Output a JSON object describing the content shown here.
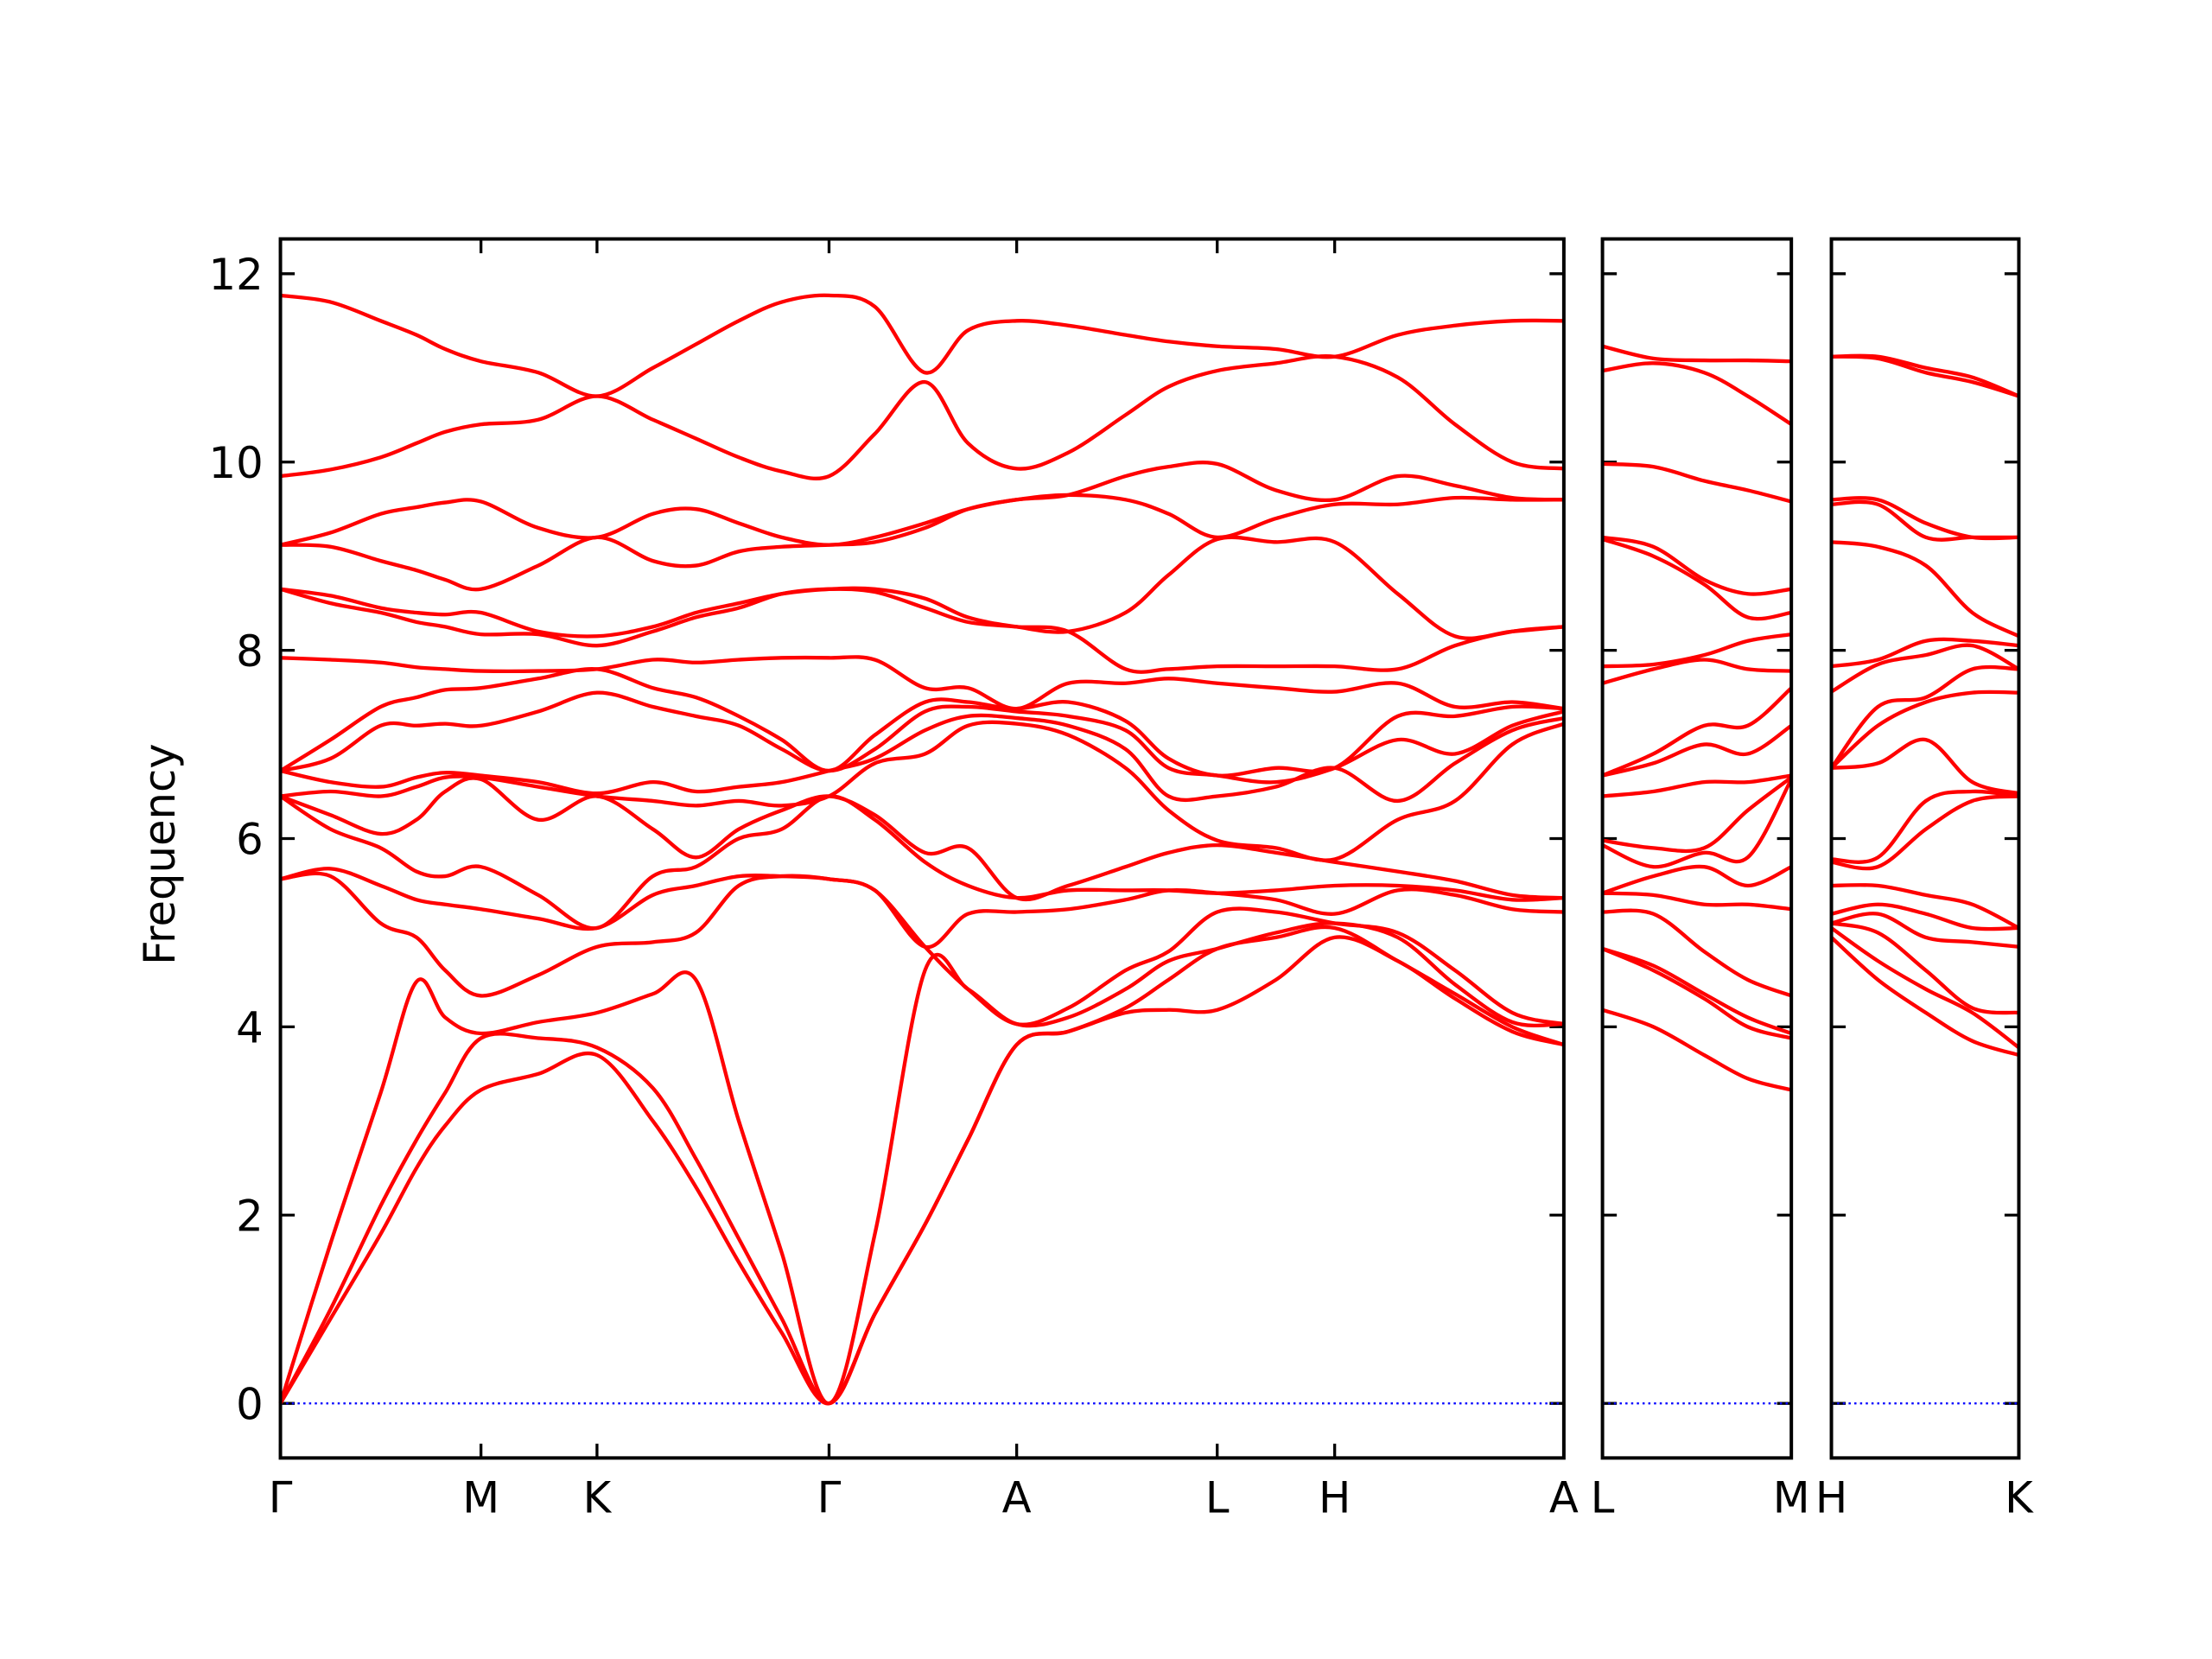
{
  "chart_data": [
    {
      "type": "line",
      "ylabel": "Frequency",
      "color": "#ff0000",
      "ytick_labels": true,
      "hline": {
        "value": 0,
        "color": "#0000ff"
      },
      "x": [
        0,
        0.35,
        0.7,
        0.95,
        1.15,
        1.4,
        1.8,
        2.21,
        2.6,
        2.9,
        3.2,
        3.5,
        3.83,
        4.15,
        4.5,
        4.8,
        5.14,
        5.5,
        5.9,
        6.2,
        6.54,
        6.95,
        7.36,
        7.8,
        8.2,
        8.6,
        8.96
      ],
      "xlim": [
        0,
        8.96
      ],
      "xticks": [
        {
          "value": 0,
          "label": "Γ"
        },
        {
          "value": 1.4,
          "label": "M"
        },
        {
          "value": 2.21,
          "label": "K"
        },
        {
          "value": 3.83,
          "label": "Γ"
        },
        {
          "value": 5.14,
          "label": "A"
        },
        {
          "value": 6.54,
          "label": "L"
        },
        {
          "value": 7.36,
          "label": "H"
        },
        {
          "value": 8.96,
          "label": "A"
        }
      ],
      "ylim": [
        -0.58,
        12.37
      ],
      "yticks": [
        0,
        2,
        4,
        6,
        8,
        10,
        12
      ],
      "series": [
        {
          "values": [
            0,
            0.9,
            1.8,
            2.5,
            2.95,
            3.33,
            3.5,
            3.7,
            3.0,
            2.3,
            1.5,
            0.75,
            0,
            0.95,
            1.9,
            2.8,
            3.81,
            3.95,
            4.15,
            4.18,
            4.18,
            4.5,
            4.95,
            4.7,
            4.3,
            3.95,
            3.81
          ]
        },
        {
          "values": [
            0,
            1.0,
            2.1,
            2.8,
            3.3,
            3.88,
            3.88,
            3.78,
            3.35,
            2.6,
            1.75,
            0.9,
            0,
            0.95,
            1.9,
            2.8,
            3.81,
            3.95,
            4.2,
            4.5,
            4.83,
            4.95,
            5.05,
            4.7,
            4.35,
            4.0,
            3.81
          ]
        },
        {
          "values": [
            0,
            1.7,
            3.3,
            4.48,
            4.1,
            3.93,
            4.05,
            4.15,
            4.35,
            4.5,
            3.0,
            1.6,
            0,
            1.8,
            4.6,
            4.4,
            4.03,
            4.1,
            4.4,
            4.7,
            4.83,
            5.0,
            5.1,
            4.95,
            4.45,
            4.05,
            4.03
          ]
        },
        {
          "values": [
            5.57,
            5.6,
            5.1,
            4.95,
            4.6,
            4.33,
            4.55,
            4.85,
            4.9,
            5.0,
            5.5,
            5.6,
            5.57,
            5.45,
            4.85,
            4.4,
            4.03,
            4.2,
            4.6,
            4.8,
            5.22,
            5.22,
            5.1,
            5.0,
            4.6,
            4.15,
            4.03
          ]
        },
        {
          "values": [
            5.57,
            5.68,
            5.5,
            5.35,
            5.3,
            5.25,
            5.15,
            5.05,
            5.4,
            5.5,
            5.6,
            5.6,
            5.57,
            5.45,
            4.85,
            5.2,
            5.22,
            5.25,
            5.35,
            5.45,
            5.42,
            5.35,
            5.2,
            5.45,
            5.4,
            5.25,
            5.22
          ]
        },
        {
          "values": [
            6.45,
            6.1,
            5.9,
            5.65,
            5.6,
            5.7,
            5.4,
            5.05,
            5.6,
            5.7,
            6.0,
            6.1,
            6.45,
            6.2,
            5.75,
            5.5,
            5.37,
            5.45,
            5.45,
            5.45,
            5.42,
            5.45,
            5.5,
            5.5,
            5.45,
            5.35,
            5.37
          ]
        },
        {
          "values": [
            6.45,
            6.25,
            6.05,
            6.2,
            6.5,
            6.63,
            6.2,
            6.45,
            6.1,
            5.8,
            6.1,
            6.3,
            6.45,
            6.25,
            5.85,
            5.9,
            5.37,
            5.5,
            5.7,
            5.85,
            5.93,
            5.85,
            5.75,
            5.65,
            5.55,
            5.4,
            5.37
          ]
        },
        {
          "values": [
            6.45,
            6.5,
            6.45,
            6.55,
            6.65,
            6.65,
            6.55,
            6.45,
            6.4,
            6.35,
            6.4,
            6.35,
            6.45,
            6.8,
            6.9,
            7.2,
            7.22,
            7.1,
            6.75,
            6.3,
            5.98,
            5.9,
            5.78,
            6.2,
            6.4,
            7.0,
            7.22
          ]
        },
        {
          "values": [
            6.72,
            6.6,
            6.55,
            6.65,
            6.7,
            6.67,
            6.6,
            6.48,
            6.6,
            6.5,
            6.55,
            6.6,
            6.72,
            6.85,
            7.15,
            7.3,
            7.28,
            7.2,
            6.95,
            6.45,
            6.45,
            6.55,
            6.75,
            6.4,
            6.8,
            7.15,
            7.28
          ]
        },
        {
          "values": [
            6.72,
            6.85,
            7.2,
            7.2,
            7.22,
            7.2,
            7.35,
            7.55,
            7.4,
            7.3,
            7.2,
            6.95,
            6.72,
            6.95,
            7.35,
            7.4,
            7.35,
            7.3,
            7.15,
            6.75,
            6.67,
            6.6,
            6.75,
            7.05,
            6.9,
            7.2,
            7.35
          ]
        },
        {
          "values": [
            6.72,
            7.05,
            7.4,
            7.5,
            7.58,
            7.6,
            7.7,
            7.8,
            7.6,
            7.5,
            7.3,
            7.05,
            6.72,
            7.1,
            7.45,
            7.45,
            7.38,
            7.45,
            7.25,
            6.85,
            6.67,
            6.75,
            6.75,
            7.3,
            7.3,
            7.4,
            7.38
          ]
        },
        {
          "values": [
            7.92,
            7.9,
            7.87,
            7.82,
            7.8,
            7.78,
            7.78,
            7.8,
            7.9,
            7.87,
            7.9,
            7.92,
            7.92,
            7.9,
            7.6,
            7.6,
            7.38,
            7.65,
            7.65,
            7.7,
            7.65,
            7.6,
            7.56,
            7.65,
            7.4,
            7.45,
            7.38
          ]
        },
        {
          "values": [
            8.65,
            8.5,
            8.4,
            8.3,
            8.25,
            8.17,
            8.17,
            8.05,
            8.2,
            8.35,
            8.45,
            8.6,
            8.65,
            8.62,
            8.45,
            8.3,
            8.25,
            8.2,
            7.8,
            7.8,
            7.83,
            7.83,
            7.83,
            7.8,
            8.05,
            8.2,
            8.25
          ]
        },
        {
          "values": [
            8.65,
            8.58,
            8.45,
            8.4,
            8.38,
            8.4,
            8.2,
            8.15,
            8.25,
            8.4,
            8.5,
            8.6,
            8.65,
            8.65,
            8.55,
            8.35,
            8.25,
            8.2,
            8.4,
            8.8,
            9.18,
            9.15,
            9.15,
            8.6,
            8.15,
            8.2,
            8.25
          ]
        },
        {
          "values": [
            9.12,
            9.1,
            8.95,
            8.85,
            8.75,
            8.65,
            8.9,
            9.2,
            8.95,
            8.9,
            9.05,
            9.1,
            9.12,
            9.15,
            9.3,
            9.5,
            9.6,
            9.65,
            9.6,
            9.45,
            9.2,
            9.4,
            9.55,
            9.55,
            9.62,
            9.6,
            9.6
          ]
        },
        {
          "values": [
            9.12,
            9.25,
            9.45,
            9.52,
            9.57,
            9.58,
            9.3,
            9.2,
            9.45,
            9.5,
            9.35,
            9.2,
            9.12,
            9.2,
            9.35,
            9.5,
            9.6,
            9.65,
            9.85,
            9.95,
            9.98,
            9.7,
            9.6,
            9.85,
            9.75,
            9.62,
            9.6
          ]
        },
        {
          "values": [
            9.85,
            9.92,
            10.05,
            10.2,
            10.32,
            10.4,
            10.45,
            10.7,
            10.45,
            10.25,
            10.05,
            9.9,
            9.85,
            10.3,
            10.85,
            10.2,
            9.93,
            10.1,
            10.5,
            10.8,
            10.97,
            11.05,
            11.12,
            10.9,
            10.4,
            10.0,
            9.93
          ]
        },
        {
          "values": [
            11.77,
            11.7,
            11.5,
            11.35,
            11.2,
            11.07,
            10.95,
            10.7,
            11.0,
            11.25,
            11.5,
            11.7,
            11.77,
            11.65,
            10.95,
            11.4,
            11.5,
            11.45,
            11.35,
            11.28,
            11.23,
            11.2,
            11.12,
            11.35,
            11.45,
            11.5,
            11.5
          ]
        }
      ]
    },
    {
      "type": "line",
      "color": "#ff0000",
      "ytick_labels": false,
      "hline": {
        "value": 0,
        "color": "#0000ff"
      },
      "x": [
        0,
        0.35,
        0.7,
        1.0,
        1.3
      ],
      "xlim": [
        0,
        1.3
      ],
      "xticks": [
        {
          "value": 0,
          "label": "L"
        },
        {
          "value": 1.3,
          "label": "M"
        }
      ],
      "ylim": [
        -0.58,
        12.37
      ],
      "yticks": [
        0,
        2,
        4,
        6,
        8,
        10,
        12
      ],
      "series": [
        {
          "values": [
            4.18,
            4.0,
            3.7,
            3.45,
            3.33
          ]
        },
        {
          "values": [
            4.83,
            4.6,
            4.3,
            4.0,
            3.88
          ]
        },
        {
          "values": [
            4.83,
            4.65,
            4.35,
            4.1,
            3.93
          ]
        },
        {
          "values": [
            5.22,
            5.2,
            4.8,
            4.5,
            4.33
          ]
        },
        {
          "values": [
            5.42,
            5.4,
            5.3,
            5.3,
            5.25
          ]
        },
        {
          "values": [
            5.42,
            5.6,
            5.7,
            5.5,
            5.7
          ]
        },
        {
          "values": [
            5.93,
            5.7,
            5.85,
            5.8,
            6.63
          ]
        },
        {
          "values": [
            5.98,
            5.9,
            5.9,
            6.3,
            6.65
          ]
        },
        {
          "values": [
            6.45,
            6.5,
            6.6,
            6.6,
            6.67
          ]
        },
        {
          "values": [
            6.67,
            6.8,
            7.0,
            6.9,
            7.2
          ]
        },
        {
          "values": [
            6.67,
            6.9,
            7.2,
            7.2,
            7.6
          ]
        },
        {
          "values": [
            7.65,
            7.8,
            7.9,
            7.8,
            7.78
          ]
        },
        {
          "values": [
            7.83,
            7.85,
            7.95,
            8.1,
            8.17
          ]
        },
        {
          "values": [
            9.18,
            9.0,
            8.7,
            8.35,
            8.4
          ]
        },
        {
          "values": [
            9.2,
            9.1,
            8.75,
            8.6,
            8.65
          ]
        },
        {
          "values": [
            9.98,
            9.95,
            9.8,
            9.7,
            9.58
          ]
        },
        {
          "values": [
            10.97,
            11.05,
            10.95,
            10.7,
            10.4
          ]
        },
        {
          "values": [
            11.23,
            11.1,
            11.08,
            11.08,
            11.07
          ]
        }
      ]
    },
    {
      "type": "line",
      "color": "#ff0000",
      "ytick_labels": false,
      "hline": {
        "value": 0,
        "color": "#0000ff"
      },
      "x": [
        0,
        0.32,
        0.65,
        0.97,
        1.29
      ],
      "xlim": [
        0,
        1.29
      ],
      "xticks": [
        {
          "value": 0,
          "label": "H"
        },
        {
          "value": 1.29,
          "label": "K"
        }
      ],
      "ylim": [
        -0.58,
        12.37
      ],
      "yticks": [
        0,
        2,
        4,
        6,
        8,
        10,
        12
      ],
      "series": [
        {
          "values": [
            4.95,
            4.5,
            4.15,
            3.85,
            3.7
          ]
        },
        {
          "values": [
            5.05,
            4.7,
            4.4,
            4.15,
            3.78
          ]
        },
        {
          "values": [
            5.1,
            5.0,
            4.6,
            4.2,
            4.15
          ]
        },
        {
          "values": [
            5.1,
            5.2,
            4.95,
            4.9,
            4.85
          ]
        },
        {
          "values": [
            5.2,
            5.3,
            5.2,
            5.05,
            5.05
          ]
        },
        {
          "values": [
            5.5,
            5.5,
            5.4,
            5.3,
            5.05
          ]
        },
        {
          "values": [
            5.75,
            5.7,
            6.1,
            6.4,
            6.45
          ]
        },
        {
          "values": [
            5.78,
            5.8,
            6.4,
            6.5,
            6.45
          ]
        },
        {
          "values": [
            6.75,
            6.8,
            7.05,
            6.6,
            6.48
          ]
        },
        {
          "values": [
            6.75,
            7.2,
            7.45,
            7.55,
            7.55
          ]
        },
        {
          "values": [
            6.75,
            7.4,
            7.5,
            7.8,
            7.8
          ]
        },
        {
          "values": [
            7.56,
            7.85,
            7.95,
            8.05,
            7.8
          ]
        },
        {
          "values": [
            7.83,
            7.9,
            8.1,
            8.1,
            8.05
          ]
        },
        {
          "values": [
            9.15,
            9.1,
            8.9,
            8.4,
            8.15
          ]
        },
        {
          "values": [
            9.55,
            9.55,
            9.2,
            9.2,
            9.2
          ]
        },
        {
          "values": [
            9.6,
            9.6,
            9.35,
            9.2,
            9.2
          ]
        },
        {
          "values": [
            11.12,
            11.1,
            10.95,
            10.85,
            10.7
          ]
        },
        {
          "values": [
            11.12,
            11.12,
            11.0,
            10.9,
            10.7
          ]
        }
      ]
    }
  ]
}
